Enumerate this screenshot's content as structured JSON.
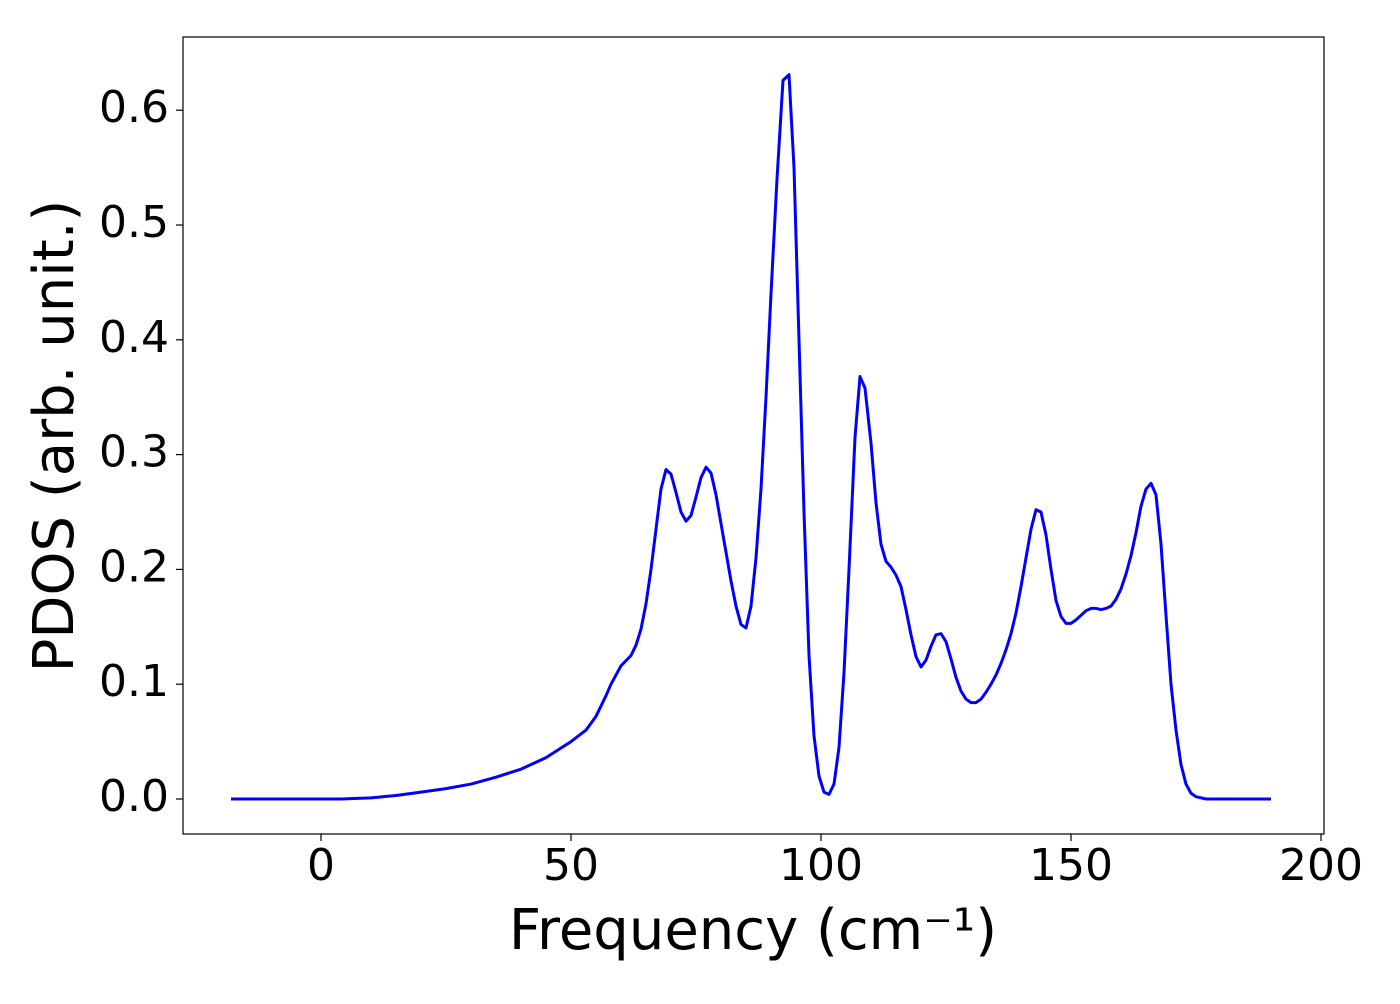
{
  "chart_data": {
    "type": "line",
    "xlabel": "Frequency (cm⁻¹)",
    "ylabel": "PDOS (arb. unit.)",
    "x": [
      -18,
      -10,
      0,
      4,
      10,
      15,
      20,
      25,
      30,
      35,
      40,
      45,
      50,
      53,
      55,
      57,
      58,
      60,
      62,
      63,
      64,
      65,
      66,
      67,
      68,
      69,
      70,
      71,
      72,
      73,
      74,
      75,
      76,
      77,
      78,
      79,
      80,
      81,
      82,
      83,
      84,
      85,
      86,
      87,
      88,
      89,
      90,
      91.2,
      92.4,
      93.6,
      94.6,
      95.6,
      96.6,
      97.6,
      98.6,
      99.6,
      100.6,
      101.6,
      102.6,
      103.6,
      104.6,
      105.6,
      106.8,
      107.8,
      108.8,
      110,
      111,
      112,
      113,
      114,
      115,
      116,
      117,
      118,
      119,
      120,
      121,
      122,
      123,
      124,
      125,
      126,
      127,
      128,
      129,
      130,
      131,
      132,
      133,
      134,
      135,
      136,
      137,
      138,
      139,
      140,
      141,
      142,
      143,
      144,
      145,
      146,
      147,
      148,
      149,
      150,
      151,
      152,
      153,
      154,
      155,
      156,
      157,
      158,
      159,
      160,
      161,
      162,
      163,
      164,
      165,
      166,
      167,
      168,
      169,
      170,
      171,
      172,
      173,
      174,
      175,
      176,
      177,
      190
    ],
    "series": [
      {
        "color": "#0000ff",
        "values": [
          0,
          0,
          0,
          0,
          0.001,
          0.003,
          0.006,
          0.009,
          0.013,
          0.019,
          0.026,
          0.036,
          0.05,
          0.06,
          0.072,
          0.09,
          0.1,
          0.116,
          0.125,
          0.134,
          0.148,
          0.17,
          0.2,
          0.235,
          0.27,
          0.287,
          0.283,
          0.267,
          0.25,
          0.242,
          0.247,
          0.263,
          0.28,
          0.289,
          0.284,
          0.265,
          0.24,
          0.215,
          0.19,
          0.168,
          0.152,
          0.149,
          0.168,
          0.21,
          0.27,
          0.35,
          0.44,
          0.54,
          0.626,
          0.631,
          0.55,
          0.4,
          0.25,
          0.125,
          0.055,
          0.02,
          0.006,
          0.004,
          0.013,
          0.045,
          0.11,
          0.2,
          0.315,
          0.368,
          0.358,
          0.31,
          0.258,
          0.222,
          0.207,
          0.202,
          0.195,
          0.185,
          0.165,
          0.143,
          0.124,
          0.115,
          0.121,
          0.133,
          0.143,
          0.144,
          0.137,
          0.122,
          0.106,
          0.094,
          0.087,
          0.084,
          0.084,
          0.087,
          0.093,
          0.1,
          0.108,
          0.118,
          0.13,
          0.144,
          0.162,
          0.185,
          0.21,
          0.235,
          0.252,
          0.25,
          0.23,
          0.2,
          0.173,
          0.159,
          0.153,
          0.153,
          0.156,
          0.16,
          0.164,
          0.166,
          0.166,
          0.165,
          0.166,
          0.168,
          0.174,
          0.183,
          0.196,
          0.212,
          0.232,
          0.255,
          0.27,
          0.275,
          0.265,
          0.222,
          0.16,
          0.1,
          0.06,
          0.03,
          0.013,
          0.005,
          0.002,
          0.001,
          0,
          0
        ]
      }
    ],
    "xlim": [
      -27.6,
      200.6
    ],
    "ylim": [
      -0.0305,
      0.6638
    ],
    "xticks": [
      0,
      50,
      100,
      150,
      200
    ],
    "yticks": [
      {
        "value": 0,
        "label": "0.0"
      },
      0.1,
      0.2,
      0.3,
      0.4,
      0.5,
      0.6
    ]
  }
}
